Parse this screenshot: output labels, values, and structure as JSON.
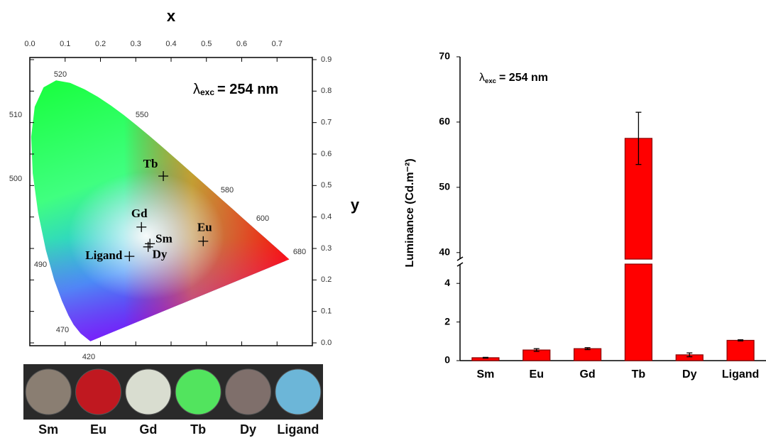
{
  "chart_data": [
    {
      "type": "scatter",
      "x_label": "x",
      "y_label": "y",
      "annotation": {
        "symbol": "λ",
        "subscript": "exc",
        "text": "= 254 nm"
      },
      "labels": [
        "Tb",
        "Gd",
        "Sm",
        "Dy",
        "Eu",
        "Ligand"
      ],
      "x": [
        0.378,
        0.316,
        0.34,
        0.335,
        0.491,
        0.282
      ],
      "values": [
        0.53,
        0.368,
        0.315,
        0.305,
        0.323,
        0.275
      ],
      "color": "#000000",
      "xlim": [
        0,
        0.8
      ],
      "xticks": [
        {
          "value": 0,
          "label": "0.0"
        },
        0.1,
        0.2,
        0.3,
        0.4,
        0.5,
        0.6,
        0.7
      ],
      "ylim": [
        0,
        0.9
      ],
      "yticks": [
        {
          "value": 0,
          "label": "0.0"
        },
        0.1,
        0.2,
        0.3,
        0.4,
        0.5,
        0.6,
        0.7,
        0.8,
        0.9
      ],
      "wavelength_labels": [
        "520",
        "550",
        "510",
        "500",
        "580",
        "600",
        "680",
        "490",
        "470",
        "420"
      ],
      "photos": {
        "labels": [
          "Sm",
          "Eu",
          "Gd",
          "Tb",
          "Dy",
          "Ligand"
        ],
        "colors": [
          "#8a7e72",
          "#c01820",
          "#d9ddd0",
          "#52e45e",
          "#7f6f6b",
          "#6cb6d8"
        ]
      }
    },
    {
      "type": "bar",
      "y_label": "Luminance (Cd.m⁻²)",
      "annotation": {
        "symbol": "λ",
        "subscript": "exc",
        "text": "= 254 nm"
      },
      "categories": [
        "Sm",
        "Eu",
        "Gd",
        "Tb",
        "Dy",
        "Ligand"
      ],
      "values": [
        0.15,
        0.55,
        0.62,
        57.5,
        0.3,
        1.05
      ],
      "errors": [
        0.02,
        0.07,
        0.05,
        4,
        0.1,
        0.03
      ],
      "color": "#ff0000",
      "ylim": [
        0,
        70
      ],
      "ybreak": [
        5,
        39
      ],
      "yticks": [
        0,
        2,
        4,
        40,
        50,
        60,
        70
      ]
    }
  ]
}
